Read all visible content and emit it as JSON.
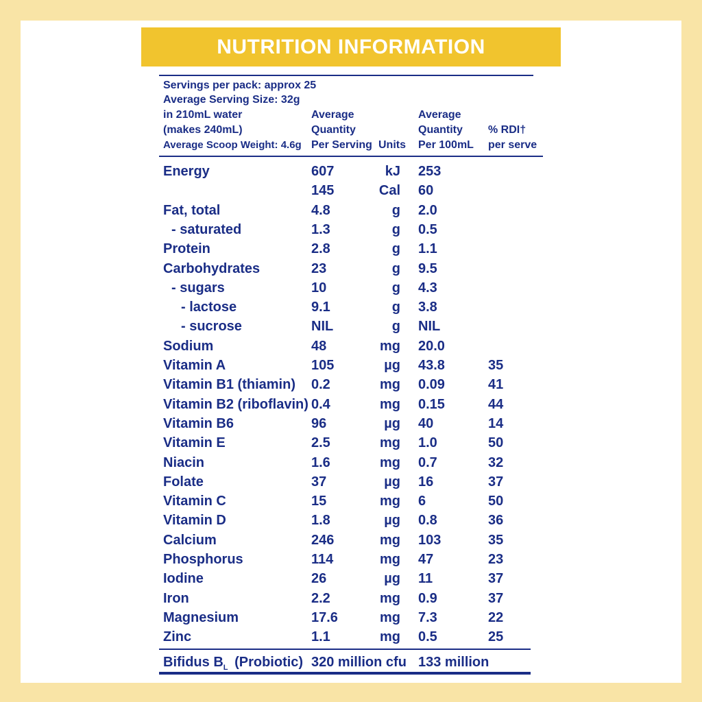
{
  "title": "NUTRITION INFORMATION",
  "serving_info": {
    "servings_per_pack": "Servings per pack: approx 25",
    "serving_size": "Average Serving Size: 32g",
    "in_water": "in 210mL water",
    "makes": "(makes 240mL)",
    "scoop_weight": "Average Scoop Weight: 4.6g"
  },
  "columns": {
    "per_serving_1": "Average",
    "per_serving_2": "Quantity",
    "per_serving_3": "Per Serving",
    "units": "Units",
    "per_100ml_1": "Average",
    "per_100ml_2": "Quantity",
    "per_100ml_3": "Per 100mL",
    "rdi_1": "% RDI†",
    "rdi_2": "per serve"
  },
  "rows": [
    {
      "label": "Energy",
      "serving": "607",
      "unit": "kJ",
      "per100": "253",
      "rdi": ""
    },
    {
      "label": "",
      "serving": "145",
      "unit": "Cal",
      "per100": "60",
      "rdi": ""
    },
    {
      "label": "Fat, total",
      "serving": "4.8",
      "unit": "g",
      "per100": "2.0",
      "rdi": ""
    },
    {
      "label": "- saturated",
      "serving": "1.3",
      "unit": "g",
      "per100": "0.5",
      "rdi": ""
    },
    {
      "label": "Protein",
      "serving": "2.8",
      "unit": "g",
      "per100": "1.1",
      "rdi": ""
    },
    {
      "label": "Carbohydrates",
      "serving": "23",
      "unit": "g",
      "per100": "9.5",
      "rdi": ""
    },
    {
      "label": "- sugars",
      "serving": "10",
      "unit": "g",
      "per100": "4.3",
      "rdi": ""
    },
    {
      "label": "- lactose",
      "serving": "9.1",
      "unit": "g",
      "per100": "3.8",
      "rdi": ""
    },
    {
      "label": "- sucrose",
      "serving": "NIL",
      "unit": "g",
      "per100": "NIL",
      "rdi": ""
    },
    {
      "label": "Sodium",
      "serving": "48",
      "unit": "mg",
      "per100": "20.0",
      "rdi": ""
    },
    {
      "label": "Vitamin A",
      "serving": "105",
      "unit": "µg",
      "per100": "43.8",
      "rdi": "35"
    },
    {
      "label": "Vitamin B1 (thiamin)",
      "serving": "0.2",
      "unit": "mg",
      "per100": "0.09",
      "rdi": "41"
    },
    {
      "label": "Vitamin B2 (riboflavin)",
      "serving": "0.4",
      "unit": "mg",
      "per100": "0.15",
      "rdi": "44"
    },
    {
      "label": "Vitamin B6",
      "serving": "96",
      "unit": "µg",
      "per100": "40",
      "rdi": "14"
    },
    {
      "label": "Vitamin E",
      "serving": "2.5",
      "unit": "mg",
      "per100": "1.0",
      "rdi": "50"
    },
    {
      "label": "Niacin",
      "serving": "1.6",
      "unit": "mg",
      "per100": "0.7",
      "rdi": "32"
    },
    {
      "label": "Folate",
      "serving": "37",
      "unit": "µg",
      "per100": "16",
      "rdi": "37"
    },
    {
      "label": "Vitamin C",
      "serving": "15",
      "unit": "mg",
      "per100": "6",
      "rdi": "50"
    },
    {
      "label": "Vitamin D",
      "serving": "1.8",
      "unit": "µg",
      "per100": "0.8",
      "rdi": "36"
    },
    {
      "label": "Calcium",
      "serving": "246",
      "unit": "mg",
      "per100": "103",
      "rdi": "35"
    },
    {
      "label": "Phosphorus",
      "serving": "114",
      "unit": "mg",
      "per100": "47",
      "rdi": "23"
    },
    {
      "label": "Iodine",
      "serving": "26",
      "unit": "µg",
      "per100": "11",
      "rdi": "37"
    },
    {
      "label": "Iron",
      "serving": "2.2",
      "unit": "mg",
      "per100": "0.9",
      "rdi": "37"
    },
    {
      "label": "Magnesium",
      "serving": "17.6",
      "unit": "mg",
      "per100": "7.3",
      "rdi": "22"
    },
    {
      "label": "Zinc",
      "serving": "1.1",
      "unit": "mg",
      "per100": "0.5",
      "rdi": "25"
    }
  ],
  "probiotic": {
    "label_main": "Bifidus B",
    "label_sub": "L",
    "label_rest": "(Probiotic)",
    "serving": "320 million cfu",
    "per100": "133 million"
  },
  "colors": {
    "background": "#f9e4a6",
    "banner": "#f1c42e",
    "text": "#1a2d86"
  }
}
